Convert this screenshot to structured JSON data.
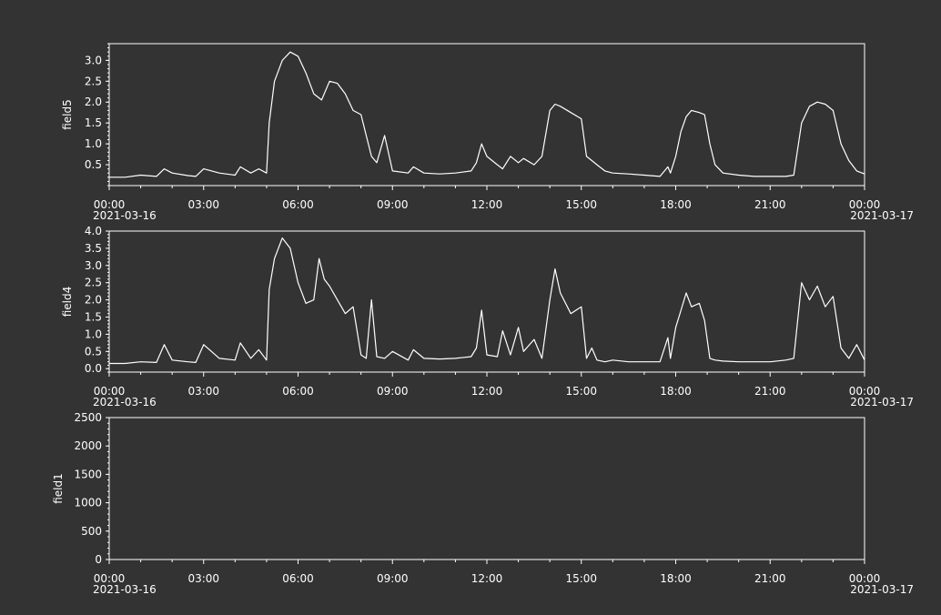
{
  "colors": {
    "background": "#333333",
    "foreground": "#ffffff"
  },
  "x_tick_labels": [
    "00:00",
    "03:00",
    "06:00",
    "09:00",
    "12:00",
    "15:00",
    "18:00",
    "21:00",
    "00:00"
  ],
  "x_date_labels": {
    "start": "2021-03-16",
    "end": "2021-03-17"
  },
  "chart_data": [
    {
      "type": "line",
      "ylabel": "field5",
      "ylim": [
        0.0,
        3.4
      ],
      "yticks": [
        0.5,
        1.0,
        1.5,
        2.0,
        2.5,
        3.0
      ],
      "ytick_labels": [
        "0.5",
        "1.0",
        "1.5",
        "2.0",
        "2.5",
        "3.0"
      ],
      "xlim": [
        "2021-03-16 00:00",
        "2021-03-17 00:00"
      ],
      "series": [
        {
          "x": [
            "00:00",
            "00:30",
            "01:00",
            "01:30",
            "01:45",
            "02:00",
            "02:30",
            "02:45",
            "03:00",
            "03:30",
            "04:00",
            "04:10",
            "04:30",
            "04:45",
            "05:00",
            "05:05",
            "05:15",
            "05:30",
            "05:45",
            "06:00",
            "06:15",
            "06:30",
            "06:45",
            "07:00",
            "07:15",
            "07:30",
            "07:45",
            "08:00",
            "08:10",
            "08:20",
            "08:30",
            "08:45",
            "09:00",
            "09:30",
            "09:40",
            "10:00",
            "10:30",
            "11:00",
            "11:30",
            "11:40",
            "11:50",
            "12:00",
            "12:20",
            "12:30",
            "12:45",
            "13:00",
            "13:10",
            "13:30",
            "13:45",
            "14:00",
            "14:10",
            "14:20",
            "14:40",
            "15:00",
            "15:10",
            "15:20",
            "15:30",
            "15:45",
            "16:00",
            "16:30",
            "17:00",
            "17:30",
            "17:45",
            "17:50",
            "18:00",
            "18:10",
            "18:20",
            "18:30",
            "18:45",
            "18:55",
            "19:05",
            "19:15",
            "19:30",
            "20:00",
            "20:30",
            "21:00",
            "21:30",
            "21:45",
            "22:00",
            "22:15",
            "22:30",
            "22:45",
            "23:00",
            "23:15",
            "23:30",
            "23:45",
            "24:00"
          ],
          "y": [
            0.2,
            0.2,
            0.25,
            0.22,
            0.4,
            0.3,
            0.24,
            0.22,
            0.4,
            0.3,
            0.25,
            0.45,
            0.3,
            0.4,
            0.3,
            1.5,
            2.5,
            3.0,
            3.2,
            3.1,
            2.7,
            2.2,
            2.05,
            2.5,
            2.45,
            2.2,
            1.8,
            1.7,
            1.2,
            0.7,
            0.55,
            1.2,
            0.35,
            0.3,
            0.45,
            0.3,
            0.28,
            0.3,
            0.35,
            0.55,
            1.0,
            0.7,
            0.5,
            0.4,
            0.7,
            0.55,
            0.65,
            0.5,
            0.7,
            1.8,
            1.95,
            1.9,
            1.75,
            1.6,
            0.7,
            0.6,
            0.5,
            0.35,
            0.3,
            0.28,
            0.25,
            0.22,
            0.45,
            0.3,
            0.7,
            1.3,
            1.65,
            1.8,
            1.75,
            1.7,
            1.0,
            0.5,
            0.3,
            0.25,
            0.22,
            0.22,
            0.22,
            0.25,
            1.5,
            1.9,
            2.0,
            1.95,
            1.8,
            1.0,
            0.6,
            0.35,
            0.28
          ]
        }
      ]
    },
    {
      "type": "line",
      "ylabel": "field4",
      "ylim": [
        -0.1,
        4.0
      ],
      "yticks": [
        0.0,
        0.5,
        1.0,
        1.5,
        2.0,
        2.5,
        3.0,
        3.5,
        4.0
      ],
      "ytick_labels": [
        "0.0",
        "0.5",
        "1.0",
        "1.5",
        "2.0",
        "2.5",
        "3.0",
        "3.5",
        "4.0"
      ],
      "xlim": [
        "2021-03-16 00:00",
        "2021-03-17 00:00"
      ],
      "series": [
        {
          "x": [
            "00:00",
            "00:30",
            "01:00",
            "01:30",
            "01:45",
            "02:00",
            "02:30",
            "02:45",
            "03:00",
            "03:30",
            "04:00",
            "04:10",
            "04:30",
            "04:45",
            "05:00",
            "05:05",
            "05:15",
            "05:30",
            "05:45",
            "06:00",
            "06:15",
            "06:30",
            "06:40",
            "06:50",
            "07:00",
            "07:15",
            "07:30",
            "07:45",
            "08:00",
            "08:10",
            "08:20",
            "08:30",
            "08:45",
            "09:00",
            "09:30",
            "09:40",
            "10:00",
            "10:30",
            "11:00",
            "11:30",
            "11:40",
            "11:50",
            "12:00",
            "12:20",
            "12:30",
            "12:45",
            "13:00",
            "13:10",
            "13:30",
            "13:45",
            "14:00",
            "14:10",
            "14:20",
            "14:40",
            "15:00",
            "15:10",
            "15:20",
            "15:30",
            "15:45",
            "16:00",
            "16:30",
            "17:00",
            "17:30",
            "17:45",
            "17:50",
            "18:00",
            "18:10",
            "18:20",
            "18:30",
            "18:45",
            "18:55",
            "19:05",
            "19:15",
            "19:30",
            "20:00",
            "20:30",
            "21:00",
            "21:30",
            "21:45",
            "22:00",
            "22:15",
            "22:30",
            "22:45",
            "23:00",
            "23:15",
            "23:30",
            "23:45",
            "24:00"
          ],
          "y": [
            0.15,
            0.15,
            0.2,
            0.18,
            0.7,
            0.25,
            0.2,
            0.18,
            0.7,
            0.3,
            0.25,
            0.75,
            0.3,
            0.55,
            0.25,
            2.3,
            3.2,
            3.8,
            3.5,
            2.5,
            1.9,
            2.0,
            3.2,
            2.6,
            2.4,
            2.0,
            1.6,
            1.8,
            0.4,
            0.3,
            2.0,
            0.35,
            0.3,
            0.5,
            0.25,
            0.55,
            0.3,
            0.28,
            0.3,
            0.35,
            0.6,
            1.7,
            0.4,
            0.35,
            1.1,
            0.4,
            1.2,
            0.5,
            0.85,
            0.3,
            2.0,
            2.9,
            2.2,
            1.6,
            1.8,
            0.3,
            0.6,
            0.25,
            0.2,
            0.25,
            0.2,
            0.2,
            0.2,
            0.9,
            0.3,
            1.2,
            1.7,
            2.2,
            1.8,
            1.9,
            1.4,
            0.3,
            0.25,
            0.22,
            0.2,
            0.2,
            0.2,
            0.25,
            0.3,
            2.5,
            2.0,
            2.4,
            1.8,
            2.1,
            0.6,
            0.3,
            0.7,
            0.25
          ]
        }
      ]
    },
    {
      "type": "line",
      "ylabel": "field1",
      "ylim": [
        0,
        2500
      ],
      "yticks": [
        0,
        500,
        1000,
        1500,
        2000,
        2500
      ],
      "ytick_labels": [
        "0",
        "500",
        "1000",
        "1500",
        "2000",
        "2500"
      ],
      "xlim": [
        "2021-03-16 00:00",
        "2021-03-17 00:00"
      ],
      "series": []
    }
  ]
}
